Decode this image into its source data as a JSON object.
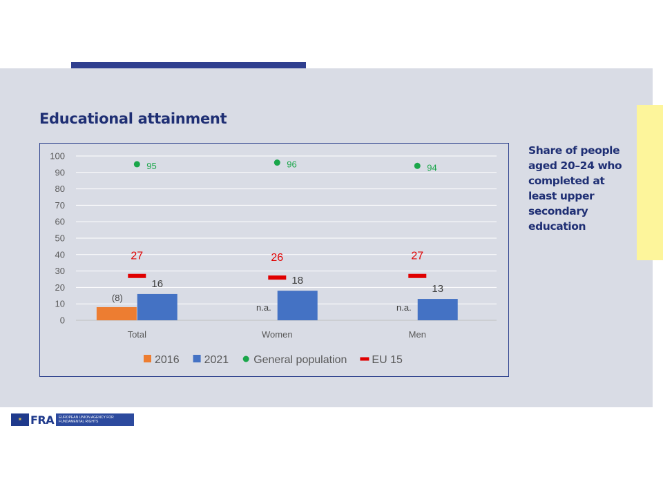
{
  "slide": {
    "title": "Educational attainment",
    "side_note": "Share of people aged 20–24 who completed at least upper secondary education"
  },
  "logo": {
    "acronym": "FRA",
    "name": "European Union Agency for Fundamental Rights"
  },
  "colors": {
    "panel": "#d9dce5",
    "accent_navy": "#1f2f74",
    "series_2016": "#ed7d31",
    "series_2021": "#4472c4",
    "general_population": "#1aa64a",
    "eu15": "#e00000"
  },
  "chart_data": {
    "type": "bar",
    "categories": [
      "Total",
      "Women",
      "Men"
    ],
    "ylim": [
      0,
      100
    ],
    "yticks": [
      "0",
      "10",
      "20",
      "30",
      "40",
      "50",
      "60",
      "70",
      "80",
      "90",
      "100"
    ],
    "grid": true,
    "legend_position": "bottom",
    "series": [
      {
        "name": "2016",
        "kind": "bar",
        "color": "#ed7d31",
        "values": [
          8,
          null,
          null
        ],
        "labels": [
          "(8)",
          "n.a.",
          "n.a."
        ]
      },
      {
        "name": "2021",
        "kind": "bar",
        "color": "#4472c4",
        "values": [
          16,
          18,
          13
        ],
        "labels": [
          "16",
          "18",
          "13"
        ]
      },
      {
        "name": "General population",
        "kind": "dot",
        "color": "#1aa64a",
        "values": [
          95,
          96,
          94
        ],
        "labels": [
          "95",
          "96",
          "94"
        ]
      },
      {
        "name": "EU 15",
        "kind": "dash",
        "color": "#e00000",
        "values": [
          27,
          26,
          27
        ],
        "labels": [
          "27",
          "26",
          "27"
        ]
      }
    ]
  }
}
